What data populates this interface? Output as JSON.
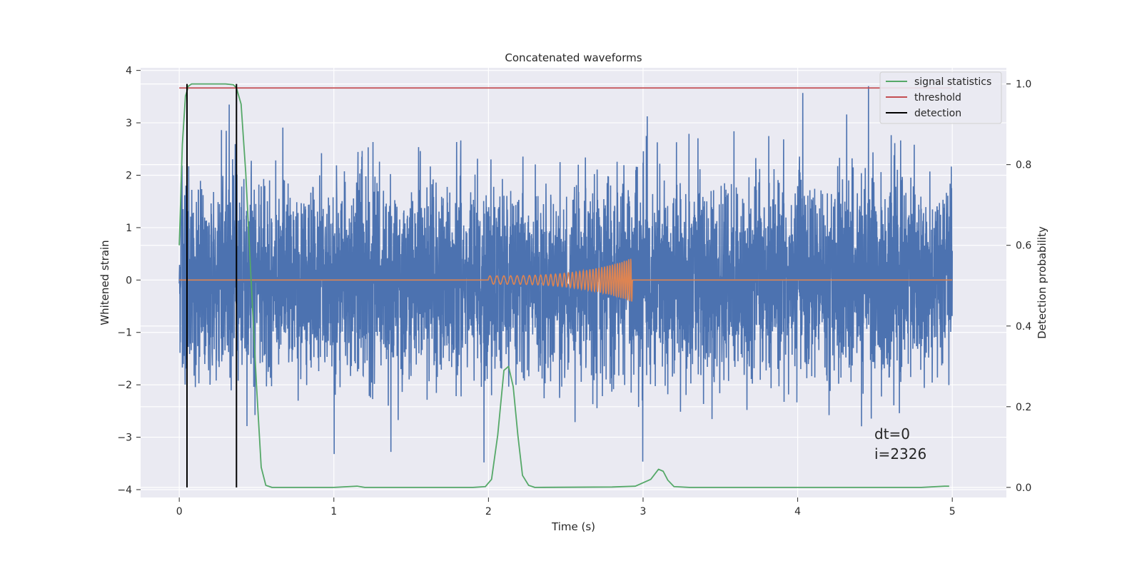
{
  "chart_data": {
    "type": "line",
    "title": "Concatenated waveforms",
    "xlabel": "Time (s)",
    "ylabel": "Whitened strain",
    "y2label": "Detection probability",
    "xlim": [
      -0.25,
      5.35
    ],
    "ylim": [
      -4.15,
      4.05
    ],
    "y2lim": [
      -0.025,
      1.04
    ],
    "x_ticks": [
      0,
      1,
      2,
      3,
      4,
      5
    ],
    "x_tick_labels": [
      "0",
      "1",
      "2",
      "3",
      "4",
      "5"
    ],
    "y_ticks": [
      -4,
      -3,
      -2,
      -1,
      0,
      1,
      2,
      3,
      4
    ],
    "y_tick_labels": [
      "−4",
      "−3",
      "−2",
      "−1",
      "0",
      "1",
      "2",
      "3",
      "4"
    ],
    "y2_ticks": [
      0.0,
      0.2,
      0.4,
      0.6,
      0.8,
      1.0
    ],
    "y2_tick_labels": [
      "0.0",
      "0.2",
      "0.4",
      "0.6",
      "0.8",
      "1.0"
    ],
    "grid": true,
    "legend_position": "top-right",
    "series": [
      {
        "name": "",
        "axis": "left",
        "color": "#4c72b0",
        "kind": "noise",
        "x_range": [
          0,
          5
        ],
        "amplitude_std": 0.95,
        "max_abs": 3.7
      },
      {
        "name": "",
        "axis": "left",
        "color": "#dd8452",
        "kind": "chirp",
        "x_range": [
          0,
          5
        ],
        "chirp_start": 2.0,
        "chirp_end": 2.93,
        "f_start": 22,
        "f_end": 75,
        "amp_start": 0.08,
        "amp_end": 0.42
      },
      {
        "name": "signal statistics",
        "axis": "right",
        "color": "#55a868",
        "x": [
          0,
          0.02,
          0.04,
          0.06,
          0.08,
          0.1,
          0.2,
          0.3,
          0.35,
          0.37,
          0.4,
          0.43,
          0.46,
          0.5,
          0.53,
          0.56,
          0.6,
          1.0,
          1.15,
          1.2,
          1.9,
          1.98,
          2.02,
          2.06,
          2.1,
          2.13,
          2.16,
          2.19,
          2.22,
          2.26,
          2.3,
          2.8,
          2.95,
          3.05,
          3.1,
          3.13,
          3.16,
          3.2,
          3.3,
          4.5,
          4.8,
          4.95,
          4.98
        ],
        "values": [
          0.6,
          0.85,
          0.97,
          0.995,
          1.0,
          1.0,
          1.0,
          1.0,
          0.998,
          0.99,
          0.95,
          0.78,
          0.55,
          0.25,
          0.05,
          0.005,
          0.0,
          0.0,
          0.003,
          0.0,
          0.0,
          0.002,
          0.02,
          0.13,
          0.29,
          0.3,
          0.25,
          0.13,
          0.03,
          0.005,
          0.0,
          0.001,
          0.003,
          0.02,
          0.045,
          0.04,
          0.018,
          0.002,
          0.0,
          0.0,
          0.0,
          0.003,
          0.003
        ]
      },
      {
        "name": "threshold",
        "axis": "right",
        "color": "#c44e52",
        "x": [
          0,
          5
        ],
        "values": [
          0.99,
          0.99
        ]
      },
      {
        "name": "detection",
        "axis": "right",
        "color": "#000000",
        "x": [
          0.05,
          0.37
        ],
        "values": [
          1.0,
          1.0
        ]
      }
    ],
    "annotations": [
      "dt=0",
      "i=2326"
    ]
  }
}
